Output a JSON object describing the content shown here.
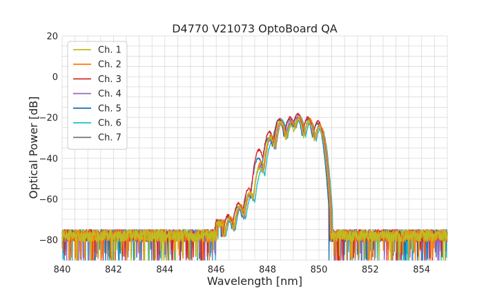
{
  "chart_data": {
    "type": "line",
    "title": "D4770 V21073 OptoBoard QA",
    "xlabel": "Wavelength [nm]",
    "ylabel": "Optical Power [dB]",
    "xlim": [
      840,
      855
    ],
    "ylim": [
      -90,
      20
    ],
    "x_ticks": [
      840,
      842,
      844,
      846,
      848,
      850,
      852,
      854
    ],
    "y_ticks": [
      20,
      0,
      -20,
      -40,
      -60,
      -80
    ],
    "x_ticks_label": [
      "840",
      "842",
      "844",
      "846",
      "848",
      "850",
      "852",
      "854"
    ],
    "y_ticks_label": [
      "20",
      "0",
      "−20",
      "−40",
      "−60",
      "−80"
    ],
    "grid": true,
    "legend_position": "top-left",
    "noise_floor_db": -78,
    "peak_wavelengths_nm": [
      846.5,
      846.9,
      847.3,
      847.7,
      848.1,
      848.5,
      848.9,
      849.2,
      849.6,
      850.0
    ],
    "series": [
      {
        "name": "Ch. 1",
        "color": "#bcbd22",
        "peak_envelope_db": [
          -70,
          -64,
          -57,
          -45,
          -30,
          -22,
          -24,
          -21,
          -22,
          -25
        ],
        "shift_nm": 0.0
      },
      {
        "name": "Ch. 2",
        "color": "#ff7f0e",
        "peak_envelope_db": [
          -69,
          -63,
          -57,
          -42,
          -29,
          -23,
          -22,
          -20,
          -21,
          -24
        ],
        "shift_nm": 0.05
      },
      {
        "name": "Ch. 3",
        "color": "#d62728",
        "peak_envelope_db": [
          -68,
          -62,
          -55,
          -36,
          -27,
          -21,
          -20,
          -18,
          -20,
          -22
        ],
        "shift_nm": -0.03
      },
      {
        "name": "Ch. 4",
        "color": "#9467bd",
        "peak_envelope_db": [
          -70,
          -65,
          -58,
          -44,
          -31,
          -22,
          -21,
          -19,
          -21,
          -24
        ],
        "shift_nm": 0.02
      },
      {
        "name": "Ch. 5",
        "color": "#1f77b4",
        "peak_envelope_db": [
          -69,
          -64,
          -58,
          -40,
          -30,
          -21,
          -21,
          -20,
          -21,
          -23
        ],
        "shift_nm": -0.06
      },
      {
        "name": "Ch. 6",
        "color": "#17becf",
        "peak_envelope_db": [
          -70,
          -64,
          -59,
          -46,
          -32,
          -22,
          -22,
          -20,
          -22,
          -25
        ],
        "shift_nm": 0.08
      },
      {
        "name": "Ch. 7",
        "color": "#7f7f7f",
        "peak_envelope_db": [
          -70,
          -64,
          -58,
          -43,
          -29,
          -21,
          -22,
          -20,
          -21,
          -24
        ],
        "shift_nm": 0.03
      }
    ]
  }
}
